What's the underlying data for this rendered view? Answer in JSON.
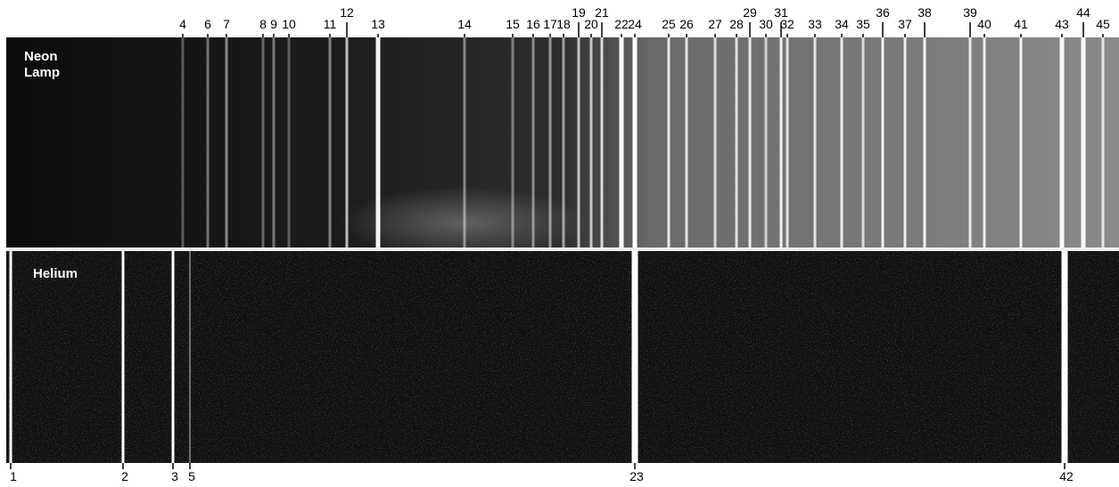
{
  "panels": [
    {
      "label": "Neon\nLamp",
      "lines": [
        "4",
        "6",
        "7",
        "8",
        "9",
        "10",
        "11",
        "12",
        "13",
        "14",
        "15",
        "16",
        "17",
        "18",
        "19",
        "20",
        "21",
        "22",
        "24",
        "25",
        "26",
        "27",
        "28",
        "29",
        "30",
        "31",
        "32",
        "33",
        "34",
        "35",
        "36",
        "37",
        "38",
        "39",
        "40",
        "41",
        "43",
        "44",
        "45"
      ]
    },
    {
      "label": "Helium",
      "lines": [
        "1",
        "2",
        "3",
        "5",
        "23",
        "42"
      ]
    }
  ]
}
